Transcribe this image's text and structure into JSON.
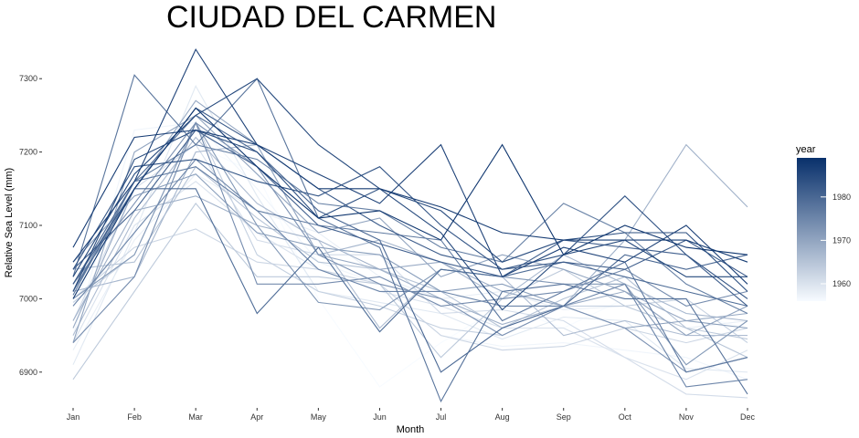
{
  "chart_data": {
    "type": "line",
    "title": "CIUDAD DEL CARMEN",
    "xlabel": "Month",
    "ylabel": "Relative Sea Level (mm)",
    "categories": [
      "Jan",
      "Feb",
      "Mar",
      "Apr",
      "May",
      "Jun",
      "Jul",
      "Aug",
      "Sep",
      "Oct",
      "Nov",
      "Dec"
    ],
    "ylim": [
      6845,
      7355
    ],
    "yticks": [
      6900,
      7000,
      7100,
      7200,
      7300
    ],
    "grid": false,
    "legend": {
      "title": "year",
      "position": "right",
      "type": "colorbar",
      "range": [
        1956,
        1989
      ],
      "ticks": [
        1960,
        1970,
        1980
      ],
      "low_color": "#f7fbff",
      "high_color": "#08306b"
    },
    "series": [
      {
        "year": 1956,
        "values": [
          6990,
          7160,
          7210,
          7170,
          7000,
          6880,
          6940,
          6990,
          6960,
          7000,
          6980,
          6960
        ]
      },
      {
        "year": 1957,
        "values": [
          6950,
          7230,
          7240,
          7150,
          7050,
          7020,
          6950,
          6935,
          6940,
          6930,
          6920,
          6890
        ]
      },
      {
        "year": 1958,
        "values": [
          6930,
          7080,
          7170,
          7120,
          7090,
          7030,
          7000,
          7010,
          6985,
          6990,
          6960,
          6970
        ]
      },
      {
        "year": 1959,
        "values": [
          6910,
          7090,
          7290,
          7140,
          7010,
          6995,
          6980,
          6945,
          6975,
          6970,
          6905,
          6900
        ]
      },
      {
        "year": 1960,
        "values": [
          6940,
          7100,
          7160,
          7090,
          7040,
          7010,
          6990,
          6960,
          6960,
          6920,
          6890,
          6930
        ]
      },
      {
        "year": 1961,
        "values": [
          6970,
          7150,
          7210,
          7080,
          7060,
          7060,
          6980,
          6985,
          6970,
          6920,
          6870,
          6865
        ]
      },
      {
        "year": 1962,
        "values": [
          7000,
          7070,
          7095,
          7050,
          7040,
          7020,
          6950,
          6930,
          6935,
          6960,
          6940,
          6960
        ]
      },
      {
        "year": 1963,
        "values": [
          6995,
          7060,
          7240,
          7060,
          7010,
          6990,
          6960,
          6950,
          6990,
          6990,
          7000,
          6940
        ]
      },
      {
        "year": 1964,
        "values": [
          6890,
          7010,
          7130,
          7030,
          7030,
          7020,
          6920,
          7000,
          7040,
          6990,
          6960,
          6945
        ]
      },
      {
        "year": 1965,
        "values": [
          7040,
          7050,
          7180,
          7110,
          7050,
          7040,
          7010,
          6960,
          7000,
          7030,
          6960,
          6920
        ]
      },
      {
        "year": 1966,
        "values": [
          6950,
          7110,
          7220,
          7130,
          7080,
          6960,
          7040,
          7030,
          6950,
          6970,
          6950,
          6950
        ]
      },
      {
        "year": 1967,
        "values": [
          7010,
          7030,
          7200,
          7210,
          7060,
          7080,
          7050,
          7000,
          7060,
          7020,
          6980,
          6970
        ]
      },
      {
        "year": 1968,
        "values": [
          6970,
          7120,
          7140,
          7100,
          7080,
          7040,
          7000,
          6965,
          6990,
          7080,
          7210,
          7125
        ]
      },
      {
        "year": 1969,
        "values": [
          6960,
          7150,
          7270,
          7210,
          7060,
          7040,
          7050,
          7010,
          6990,
          7010,
          6970,
          6980
        ]
      },
      {
        "year": 1970,
        "values": [
          6940,
          7200,
          7250,
          7170,
          7090,
          7110,
          7030,
          7060,
          7040,
          7010,
          6950,
          6990
        ]
      },
      {
        "year": 1971,
        "values": [
          7050,
          7140,
          7170,
          7090,
          7070,
          7060,
          7010,
          7020,
          6990,
          6960,
          6970,
          6960
        ]
      },
      {
        "year": 1972,
        "values": [
          7000,
          7060,
          7240,
          7100,
          6995,
          6985,
          7040,
          7030,
          7020,
          7020,
          6910,
          6970
        ]
      },
      {
        "year": 1973,
        "values": [
          7020,
          7130,
          7240,
          7180,
          7060,
          7020,
          7000,
          6950,
          6990,
          6960,
          6900,
          6920
        ]
      },
      {
        "year": 1974,
        "values": [
          6940,
          7030,
          7240,
          7020,
          7020,
          7030,
          6990,
          7000,
          7010,
          7040,
          6990,
          7010
        ]
      },
      {
        "year": 1975,
        "values": [
          6990,
          7090,
          7190,
          7120,
          7040,
          7010,
          7010,
          6990,
          6990,
          7020,
          6880,
          6890
        ]
      },
      {
        "year": 1976,
        "values": [
          7010,
          7160,
          7210,
          7190,
          7130,
          7120,
          7070,
          7050,
          7130,
          7090,
          7020,
          6980
        ]
      },
      {
        "year": 1977,
        "values": [
          7005,
          7160,
          7180,
          7120,
          7100,
          7090,
          7080,
          6970,
          7010,
          7050,
          6900,
          6920
        ]
      },
      {
        "year": 1978,
        "values": [
          7030,
          7305,
          7210,
          7300,
          7110,
          7070,
          6860,
          7010,
          7020,
          7000,
          7000,
          6870
        ]
      },
      {
        "year": 1979,
        "values": [
          7010,
          7150,
          7150,
          6980,
          7070,
          6955,
          7040,
          7030,
          7050,
          7030,
          7010,
          6990
        ]
      },
      {
        "year": 1980,
        "values": [
          7020,
          7160,
          7250,
          7200,
          7120,
          7080,
          6900,
          6960,
          6990,
          7060,
          7040,
          7060
        ]
      },
      {
        "year": 1981,
        "values": [
          7040,
          7120,
          7230,
          7180,
          7100,
          7075,
          7050,
          7030,
          7080,
          7070,
          7060,
          6990
        ]
      },
      {
        "year": 1982,
        "values": [
          7020,
          7150,
          7260,
          7210,
          7150,
          7100,
          7060,
          7040,
          7050,
          7040,
          7080,
          7030
        ]
      },
      {
        "year": 1983,
        "values": [
          7040,
          7180,
          7190,
          7160,
          7140,
          7180,
          7100,
          7040,
          7060,
          7140,
          7060,
          7000
        ]
      },
      {
        "year": 1984,
        "values": [
          7010,
          7190,
          7230,
          7200,
          7110,
          7150,
          7120,
          7050,
          7080,
          7090,
          7090,
          7010
        ]
      },
      {
        "year": 1985,
        "values": [
          7030,
          7170,
          7250,
          7300,
          7210,
          7150,
          7090,
          6985,
          7060,
          7080,
          7030,
          7030
        ]
      },
      {
        "year": 1986,
        "values": [
          7050,
          7160,
          7340,
          7210,
          7170,
          7130,
          7210,
          7030,
          7070,
          7050,
          7100,
          7020
        ]
      },
      {
        "year": 1987,
        "values": [
          7070,
          7220,
          7230,
          7210,
          7150,
          7150,
          7125,
          7090,
          7080,
          7080,
          7080,
          7050
        ]
      },
      {
        "year": 1988,
        "values": [
          7000,
          7150,
          7260,
          7180,
          7110,
          7120,
          7080,
          7210,
          7060,
          7100,
          7070,
          7060
        ]
      }
    ]
  }
}
